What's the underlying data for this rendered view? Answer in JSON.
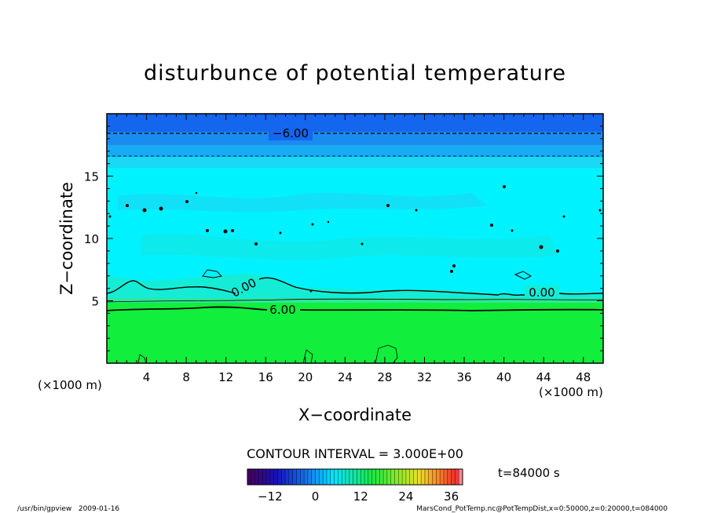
{
  "chart_data": {
    "type": "contour",
    "title": "disturbunce of potential temperature",
    "xlabel": "X−coordinate",
    "ylabel": "Z−coordinate",
    "x_unit_left": "(×1000 m)",
    "x_unit_right": "(×1000 m)",
    "xlim": [
      0,
      50
    ],
    "ylim": [
      0,
      20
    ],
    "x_ticks": [
      "4",
      "8",
      "12",
      "16",
      "20",
      "24",
      "28",
      "32",
      "36",
      "40",
      "44",
      "48"
    ],
    "y_ticks": [
      "5",
      "10",
      "15"
    ],
    "contour_interval_label": "CONTOUR INTERVAL = 3.000E+00",
    "time_label": "t=84000 s",
    "contour_labels": [
      "−6.00",
      "0.00",
      "0.00",
      "6.00"
    ],
    "colorbar": {
      "range": [
        -18,
        39
      ],
      "ticks": [
        "−12",
        "0",
        "12",
        "24",
        "36"
      ],
      "tick_values": [
        -12,
        0,
        12,
        24,
        36
      ]
    },
    "footer_left": "/usr/bin/gpview   2009-01-16",
    "footer_right": "MarsCond_PotTemp.nc@PotTempDist,x=0:50000,z=0:20000,t=084000"
  },
  "colors": {
    "deep_blue": "#1466ee",
    "mid_blue": "#19aaf4",
    "cyan": "#00f2ff",
    "light_cyan": "#1ad8f4",
    "aqua": "#14ecd6",
    "green_band": "#2ee69c",
    "green": "#11ee3b"
  }
}
